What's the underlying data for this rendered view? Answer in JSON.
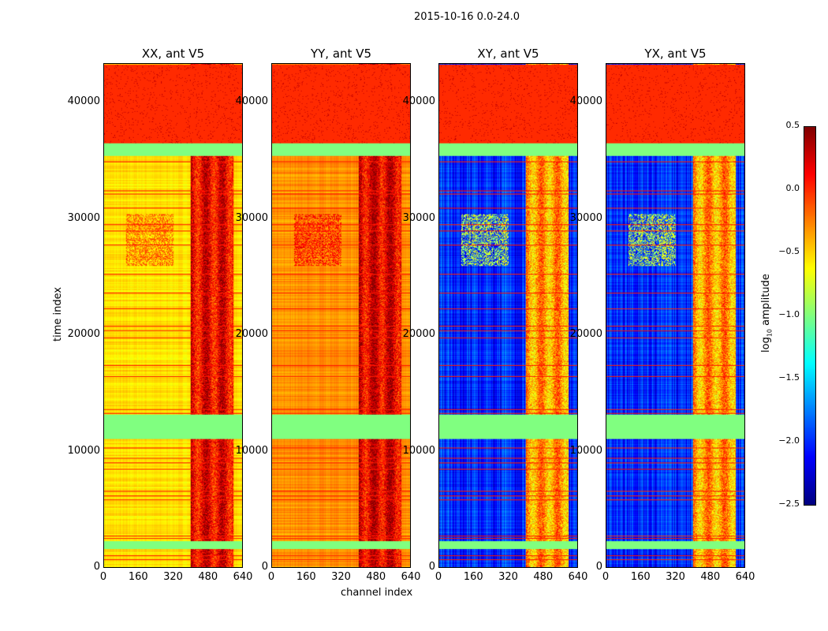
{
  "chart_data": {
    "type": "heatmap",
    "suptitle": "2015-10-16 0.0-24.0",
    "xlabel": "channel index",
    "ylabel": "time index",
    "xlim": [
      0,
      640
    ],
    "ylim": [
      0,
      43400
    ],
    "xticks": [
      "0",
      "160",
      "320",
      "480",
      "640"
    ],
    "yticks": [
      "0",
      "10000",
      "20000",
      "30000",
      "40000"
    ],
    "colormap": "jet",
    "colorbar": {
      "label": "log10 amplitude",
      "label_main": "log",
      "label_sub": "10",
      "label_rest": " amplitude",
      "range": [
        -2.5,
        0.5
      ],
      "ticks": [
        "0.5",
        "0.0",
        "−0.5",
        "−1.0",
        "−1.5",
        "−2.0",
        "−2.5"
      ]
    },
    "panels": [
      {
        "title": "XX, ant V5",
        "base": -0.55,
        "rfi": 0.1
      },
      {
        "title": "YY, ant V5",
        "base": -0.3,
        "rfi": 0.15
      },
      {
        "title": "XY, ant V5",
        "base": -2.0,
        "rfi": -0.4
      },
      {
        "title": "YX, ant V5",
        "base": -2.0,
        "rfi": -0.4
      }
    ],
    "rfi_channels": [
      400,
      600
    ],
    "bands": [
      {
        "t0": 36600,
        "t1": 43400,
        "value": 0.0
      },
      {
        "t0": 35500,
        "t1": 36600,
        "value": -1.0
      },
      {
        "t0": 11100,
        "t1": 13200,
        "value": -1.0
      },
      {
        "t0": 1600,
        "t1": 2300,
        "value": -1.0
      }
    ],
    "lines": [
      700,
      1000,
      2500,
      2700,
      5800,
      6200,
      6600,
      8500,
      9000,
      9400,
      10300,
      13300,
      13600,
      16500,
      17400,
      19800,
      20400,
      20800,
      22300,
      23700,
      25300,
      27800,
      29000,
      29600,
      31000,
      32200,
      32500,
      35000
    ],
    "hotspot": {
      "t0": 26000,
      "t1": 30500,
      "c0": 100,
      "c1": 320,
      "delta": 0.4
    }
  }
}
